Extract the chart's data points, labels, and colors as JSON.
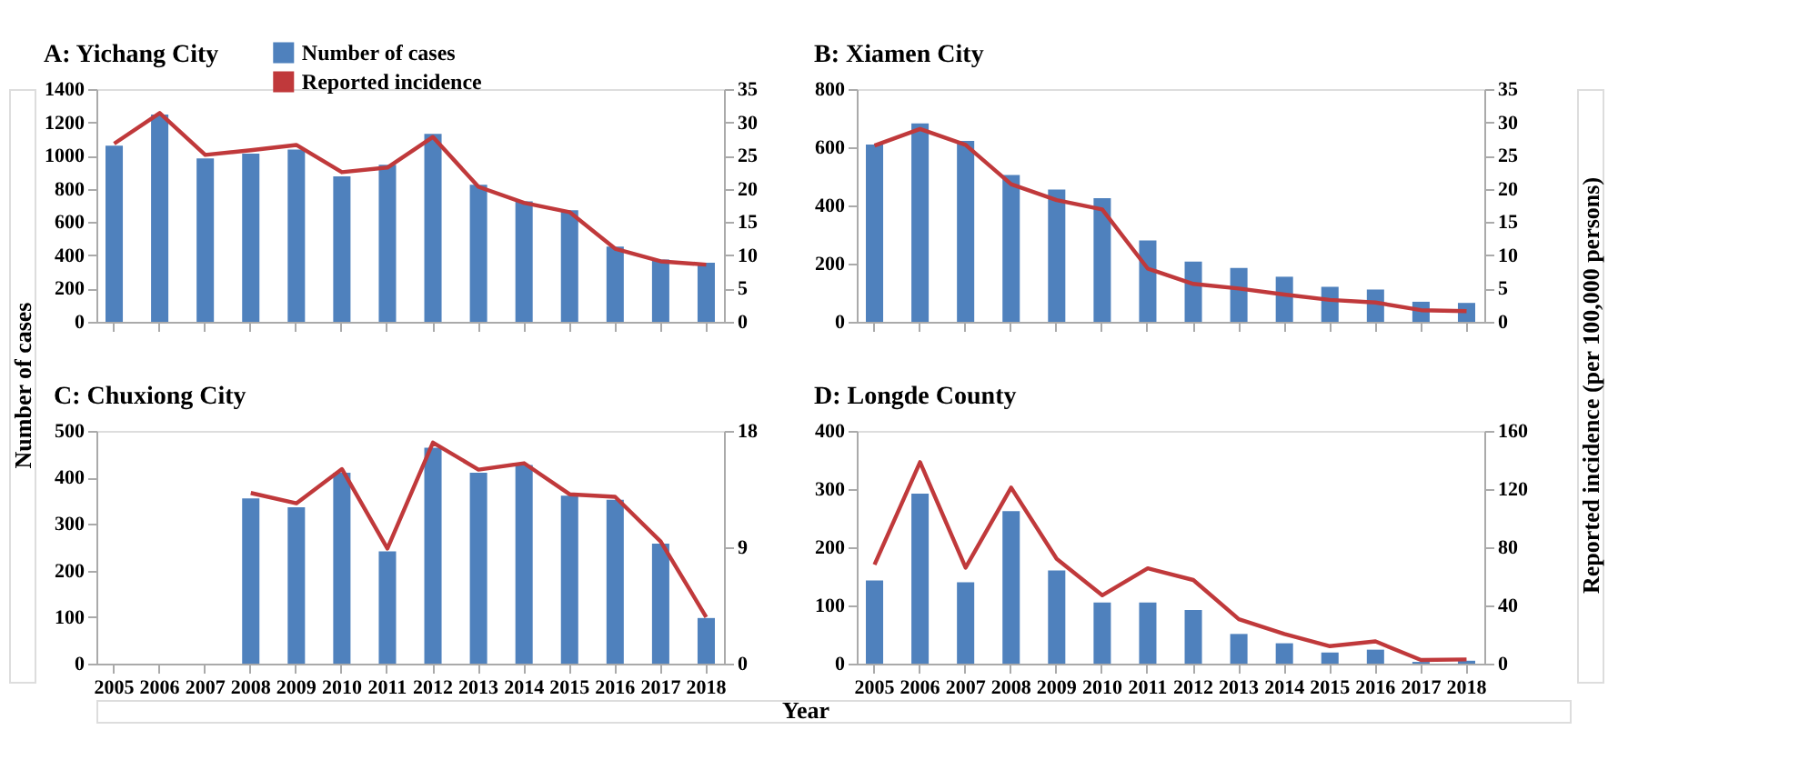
{
  "chart_data": [
    {
      "type": "bar",
      "title": "A: Yichang City",
      "ylabel": "Number of cases",
      "categories": [
        null,
        null,
        null,
        null,
        null,
        null,
        null,
        null,
        null,
        null,
        null,
        null,
        null,
        null
      ],
      "legend": "top",
      "ylim": [
        0,
        1400
      ],
      "yticks": [
        0,
        200,
        400,
        600,
        800,
        1000,
        1200,
        1400
      ],
      "y2lim": [
        0,
        35
      ],
      "y2ticks": [
        0,
        5,
        10,
        15,
        20,
        25,
        30,
        35
      ],
      "series": [
        {
          "name": "Number of cases",
          "color": "#4f81bd",
          "values": [
            1060,
            1247,
            983,
            1012,
            1037,
            875,
            945,
            1130,
            824,
            725,
            671,
            452,
            375,
            356
          ]
        },
        {
          "name": "Reported incidence",
          "type": "line",
          "axis": "y2",
          "color": "#c0393b",
          "values": [
            26.8,
            31.4,
            25.1,
            25.8,
            26.6,
            22.5,
            23.2,
            27.8,
            20.3,
            17.9,
            16.5,
            11.0,
            9.1,
            8.6
          ]
        }
      ]
    },
    {
      "type": "bar",
      "title": "B: Xiamen City",
      "y2label": "Reported incidence (per 100,000 persons)",
      "categories": [
        null,
        null,
        null,
        null,
        null,
        null,
        null,
        null,
        null,
        null,
        null,
        null,
        null,
        null
      ],
      "ylim": [
        0,
        800
      ],
      "yticks": [
        0,
        200,
        400,
        600,
        800
      ],
      "y2lim": [
        0,
        35
      ],
      "y2ticks": [
        0,
        5,
        10,
        15,
        20,
        25,
        30,
        35
      ],
      "series": [
        {
          "color": "#4f81bd",
          "values": [
            609,
            682,
            622,
            505,
            455,
            425,
            280,
            207,
            185,
            155,
            120,
            111,
            69,
            65
          ]
        },
        {
          "type": "line",
          "axis": "y2",
          "color": "#c0393b",
          "values": [
            26.5,
            29.0,
            26.6,
            20.7,
            18.3,
            16.9,
            8.0,
            5.7,
            5.0,
            4.1,
            3.3,
            2.9,
            1.75,
            1.6
          ]
        }
      ]
    },
    {
      "type": "bar",
      "title": "C: Chuxiong City",
      "xlabel": "Year",
      "categories": [
        "2005",
        "2006",
        "2007",
        "2008",
        "2009",
        "2010",
        "2011",
        "2012",
        "2013",
        "2014",
        "2015",
        "2016",
        "2017",
        "2018"
      ],
      "ylim": [
        0,
        500
      ],
      "yticks": [
        0,
        100,
        200,
        300,
        400,
        500
      ],
      "y2lim": [
        0,
        18
      ],
      "y2ticks": [
        0,
        9,
        18
      ],
      "series": [
        {
          "color": "#4f81bd",
          "values": [
            null,
            null,
            null,
            355,
            336,
            410,
            241,
            464,
            410,
            427,
            361,
            352,
            258,
            98
          ]
        },
        {
          "type": "line",
          "axis": "y2",
          "color": "#c0393b",
          "values": [
            null,
            null,
            null,
            13.2,
            12.4,
            15.05,
            8.9,
            17.1,
            15.0,
            15.5,
            13.1,
            12.9,
            9.45,
            3.6
          ]
        }
      ]
    },
    {
      "type": "bar",
      "title": "D: Longde County",
      "categories": [
        "2005",
        "2006",
        "2007",
        "2008",
        "2009",
        "2010",
        "2011",
        "2012",
        "2013",
        "2014",
        "2015",
        "2016",
        "2017",
        "2018"
      ],
      "ylim": [
        0,
        400
      ],
      "yticks": [
        0,
        100,
        200,
        300,
        400
      ],
      "y2lim": [
        0,
        160
      ],
      "y2ticks": [
        0,
        40,
        80,
        120,
        160
      ],
      "series": [
        {
          "color": "#4f81bd",
          "values": [
            143,
            292,
            140,
            262,
            160,
            105,
            105,
            92,
            51,
            35,
            19,
            24,
            3,
            5
          ]
        },
        {
          "type": "line",
          "axis": "y2",
          "color": "#c0393b",
          "values": [
            68,
            138.5,
            66,
            121,
            72,
            47,
            65.5,
            57.5,
            30.5,
            20.4,
            12,
            15.3,
            2.5,
            2.9
          ]
        }
      ]
    }
  ]
}
